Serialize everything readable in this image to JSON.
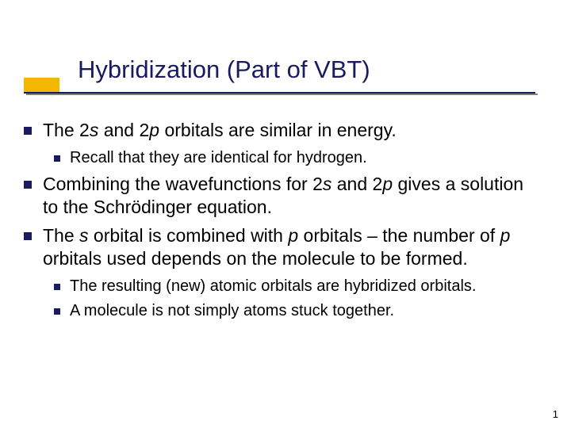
{
  "title": "Hybridization (Part of VBT)",
  "colors": {
    "accent_bar": "#f2b800",
    "title_text": "#1a1a60",
    "underline": "#1a1a60",
    "underline_shadow": "#808080",
    "bullet_marker": "#1a1a60",
    "body_text": "#000000",
    "background": "#ffffff"
  },
  "typography": {
    "title_fontsize": 31,
    "l1_fontsize": 23,
    "l2_fontsize": 20,
    "font_family": "Verdana"
  },
  "bullets": {
    "b1_pre": "The 2",
    "b1_i1": "s",
    "b1_mid": " and 2",
    "b1_i2": "p",
    "b1_post": " orbitals are similar in energy.",
    "b1a": "Recall that they are identical for hydrogen.",
    "b2_pre": "Combining the wavefunctions for 2",
    "b2_i1": "s",
    "b2_mid": " and 2",
    "b2_i2": "p",
    "b2_post": " gives a solution to the Schrödinger equation.",
    "b3_pre": "The ",
    "b3_i1": "s",
    "b3_mid1": " orbital is combined with ",
    "b3_i2": "p",
    "b3_mid2": " orbitals – the number of ",
    "b3_i3": "p",
    "b3_post": " orbitals used depends on the molecule to be formed.",
    "b3a": "The resulting (new) atomic orbitals are hybridized orbitals.",
    "b3b": "A molecule is not simply atoms stuck together."
  },
  "page_number": "1"
}
